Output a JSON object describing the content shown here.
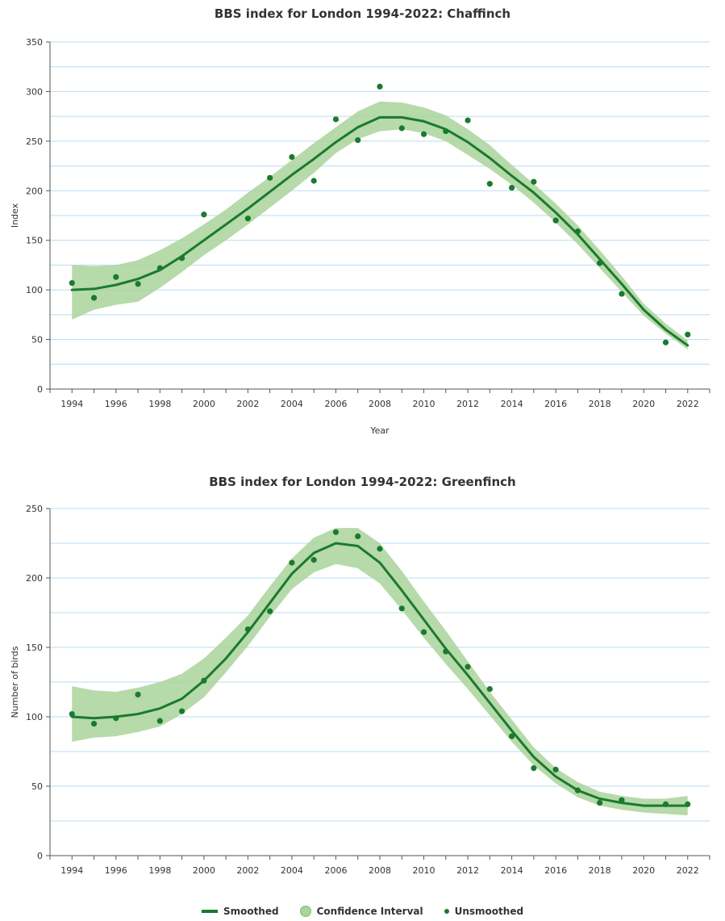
{
  "colors": {
    "line": "#1a7a2e",
    "band": "#a9d49a",
    "grid": "#b9dcf2",
    "axis": "#555555"
  },
  "legend": [
    {
      "label": "Smoothed",
      "kind": "line"
    },
    {
      "label": "Confidence Interval",
      "kind": "band"
    },
    {
      "label": "Unsmoothed",
      "kind": "dot"
    }
  ],
  "chart_data": [
    {
      "type": "line",
      "title": "BBS index for London 1994-2022: Chaffinch",
      "xlabel": "Year",
      "ylabel": "Index",
      "xlim": [
        1993,
        2023
      ],
      "ylim": [
        0,
        350
      ],
      "xticks": [
        1994,
        1996,
        1998,
        2000,
        2002,
        2004,
        2006,
        2008,
        2010,
        2012,
        2014,
        2016,
        2018,
        2020,
        2022
      ],
      "yticks": [
        0,
        50,
        100,
        150,
        200,
        250,
        300,
        350
      ],
      "grid": true,
      "smoothed": {
        "name": "Smoothed",
        "x": [
          1994,
          1995,
          1996,
          1997,
          1998,
          1999,
          2000,
          2001,
          2002,
          2003,
          2004,
          2005,
          2006,
          2007,
          2008,
          2009,
          2010,
          2011,
          2012,
          2013,
          2014,
          2015,
          2016,
          2017,
          2018,
          2019,
          2020,
          2021,
          2022
        ],
        "y": [
          100,
          101,
          105,
          111,
          120,
          134,
          150,
          166,
          182,
          199,
          216,
          232,
          249,
          264,
          274,
          274,
          270,
          262,
          249,
          233,
          215,
          198,
          178,
          156,
          131,
          106,
          80,
          60,
          44
        ]
      },
      "ci_lower": [
        70,
        80,
        85,
        88,
        102,
        118,
        135,
        150,
        166,
        183,
        200,
        218,
        238,
        252,
        260,
        262,
        258,
        250,
        236,
        222,
        206,
        188,
        168,
        146,
        122,
        98,
        74,
        56,
        40
      ],
      "ci_upper": [
        125,
        124,
        125,
        130,
        140,
        152,
        166,
        181,
        198,
        214,
        231,
        248,
        264,
        280,
        290,
        289,
        284,
        276,
        262,
        246,
        226,
        207,
        187,
        165,
        140,
        114,
        86,
        66,
        49
      ],
      "unsmoothed": {
        "name": "Unsmoothed",
        "x": [
          1994,
          1995,
          1996,
          1997,
          1998,
          1999,
          2000,
          2002,
          2003,
          2004,
          2005,
          2006,
          2007,
          2008,
          2009,
          2010,
          2011,
          2012,
          2013,
          2014,
          2015,
          2016,
          2017,
          2018,
          2019,
          2021,
          2022
        ],
        "y": [
          107,
          92,
          113,
          106,
          122,
          132,
          176,
          172,
          213,
          234,
          210,
          272,
          251,
          305,
          263,
          257,
          260,
          271,
          207,
          203,
          209,
          170,
          159,
          127,
          96,
          47,
          55
        ]
      }
    },
    {
      "type": "line",
      "title": "BBS index for London 1994-2022: Greenfinch",
      "xlabel": "",
      "ylabel": "Number of birds",
      "xlim": [
        1993,
        2023
      ],
      "ylim": [
        0,
        250
      ],
      "xticks": [
        1994,
        1996,
        1998,
        2000,
        2002,
        2004,
        2006,
        2008,
        2010,
        2012,
        2014,
        2016,
        2018,
        2020,
        2022
      ],
      "yticks": [
        0,
        50,
        100,
        150,
        200,
        250
      ],
      "grid": true,
      "smoothed": {
        "name": "Smoothed",
        "x": [
          1994,
          1995,
          1996,
          1997,
          1998,
          1999,
          2000,
          2001,
          2002,
          2003,
          2004,
          2005,
          2006,
          2007,
          2008,
          2009,
          2010,
          2011,
          2012,
          2013,
          2014,
          2015,
          2016,
          2017,
          2018,
          2019,
          2020,
          2021,
          2022
        ],
        "y": [
          100,
          99,
          100,
          102,
          106,
          113,
          126,
          142,
          161,
          182,
          203,
          218,
          225,
          223,
          211,
          191,
          170,
          149,
          130,
          110,
          90,
          71,
          57,
          47,
          41,
          38,
          36,
          36,
          36
        ]
      },
      "ci_lower": [
        82,
        85,
        86,
        89,
        93,
        102,
        114,
        132,
        151,
        172,
        192,
        204,
        210,
        207,
        196,
        177,
        157,
        138,
        120,
        101,
        82,
        65,
        52,
        42,
        36,
        33,
        31,
        30,
        29
      ],
      "ci_upper": [
        122,
        119,
        118,
        121,
        125,
        131,
        142,
        157,
        173,
        194,
        214,
        229,
        236,
        236,
        225,
        205,
        183,
        162,
        140,
        118,
        98,
        78,
        63,
        53,
        46,
        43,
        41,
        41,
        43
      ],
      "unsmoothed": {
        "name": "Unsmoothed",
        "x": [
          1994,
          1995,
          1996,
          1997,
          1998,
          1999,
          2000,
          2002,
          2003,
          2004,
          2005,
          2006,
          2007,
          2008,
          2009,
          2010,
          2011,
          2012,
          2013,
          2014,
          2015,
          2016,
          2017,
          2018,
          2019,
          2021,
          2022
        ],
        "y": [
          102,
          95,
          99,
          116,
          97,
          104,
          126,
          163,
          176,
          211,
          213,
          233,
          230,
          221,
          178,
          161,
          147,
          136,
          120,
          86,
          63,
          62,
          47,
          38,
          40,
          37,
          37
        ]
      }
    }
  ]
}
